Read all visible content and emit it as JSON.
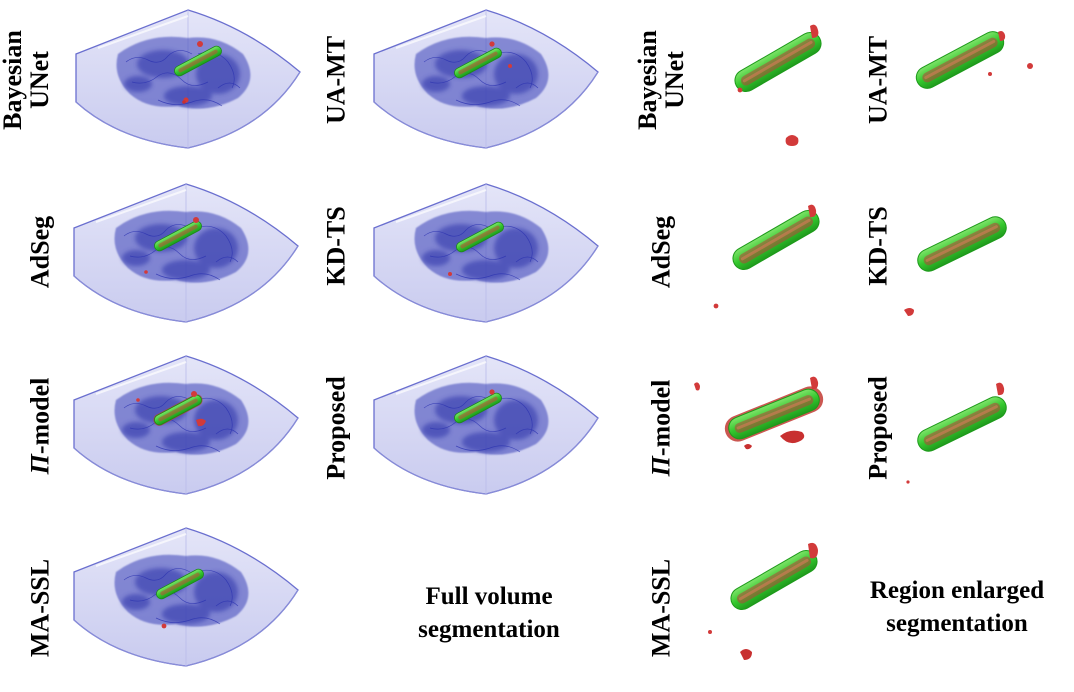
{
  "figure": {
    "full_volume": {
      "caption_line1": "Full volume",
      "caption_line2": "segmentation",
      "panels": [
        {
          "id": "bayesian-unet",
          "label_line1": "Bayesian",
          "label_line2": "UNet"
        },
        {
          "id": "ua-mt",
          "label_line1": "UA-MT"
        },
        {
          "id": "adseg",
          "label_line1": "AdSeg"
        },
        {
          "id": "kd-ts",
          "label_line1": "KD-TS"
        },
        {
          "id": "pi-model",
          "label_italic": "Π",
          "label_rest": "-model"
        },
        {
          "id": "proposed",
          "label_line1": "Proposed"
        },
        {
          "id": "ma-ssl",
          "label_line1": "MA-SSL"
        }
      ]
    },
    "region_enlarged": {
      "caption_line1": "Region enlarged",
      "caption_line2": "segmentation",
      "panels": [
        {
          "id": "bayesian-unet",
          "label_line1": "Bayesian",
          "label_line2": "UNet"
        },
        {
          "id": "ua-mt",
          "label_line1": "UA-MT"
        },
        {
          "id": "adseg",
          "label_line1": "AdSeg"
        },
        {
          "id": "kd-ts",
          "label_line1": "KD-TS"
        },
        {
          "id": "pi-model",
          "label_italic": "Π",
          "label_rest": "-model"
        },
        {
          "id": "proposed",
          "label_line1": "Proposed"
        },
        {
          "id": "ma-ssl",
          "label_line1": "MA-SSL"
        }
      ]
    },
    "colors": {
      "volume_fill": "#d6d8f4",
      "volume_edge": "#5a5fc8",
      "tissue": "#3b42b8",
      "ground_truth": "#3fcf3a",
      "prediction": "#d23a3a"
    }
  }
}
